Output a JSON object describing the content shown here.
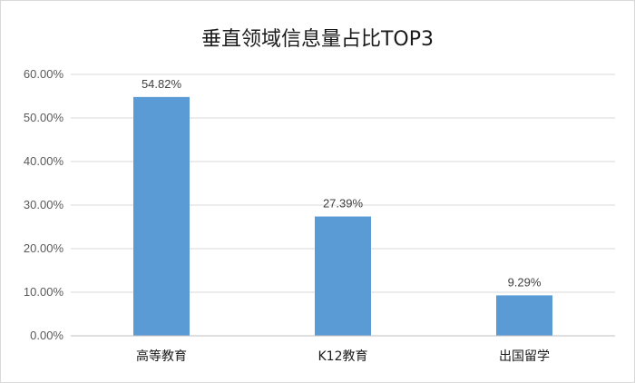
{
  "chart_data": {
    "type": "bar",
    "title": "垂直领域信息量占比TOP3",
    "xlabel": "",
    "ylabel": "",
    "categories": [
      "高等教育",
      "K12教育",
      "出国留学"
    ],
    "values": [
      54.82,
      27.39,
      9.29
    ],
    "value_labels": [
      "54.82%",
      "27.39%",
      "9.29%"
    ],
    "ylim": [
      0,
      60
    ],
    "yticks": [
      0,
      10,
      20,
      30,
      40,
      50,
      60
    ],
    "ytick_labels": [
      "0.00%",
      "10.00%",
      "20.00%",
      "30.00%",
      "40.00%",
      "50.00%",
      "60.00%"
    ],
    "grid": true,
    "legend": "none",
    "bar_color": "#5b9bd5"
  }
}
